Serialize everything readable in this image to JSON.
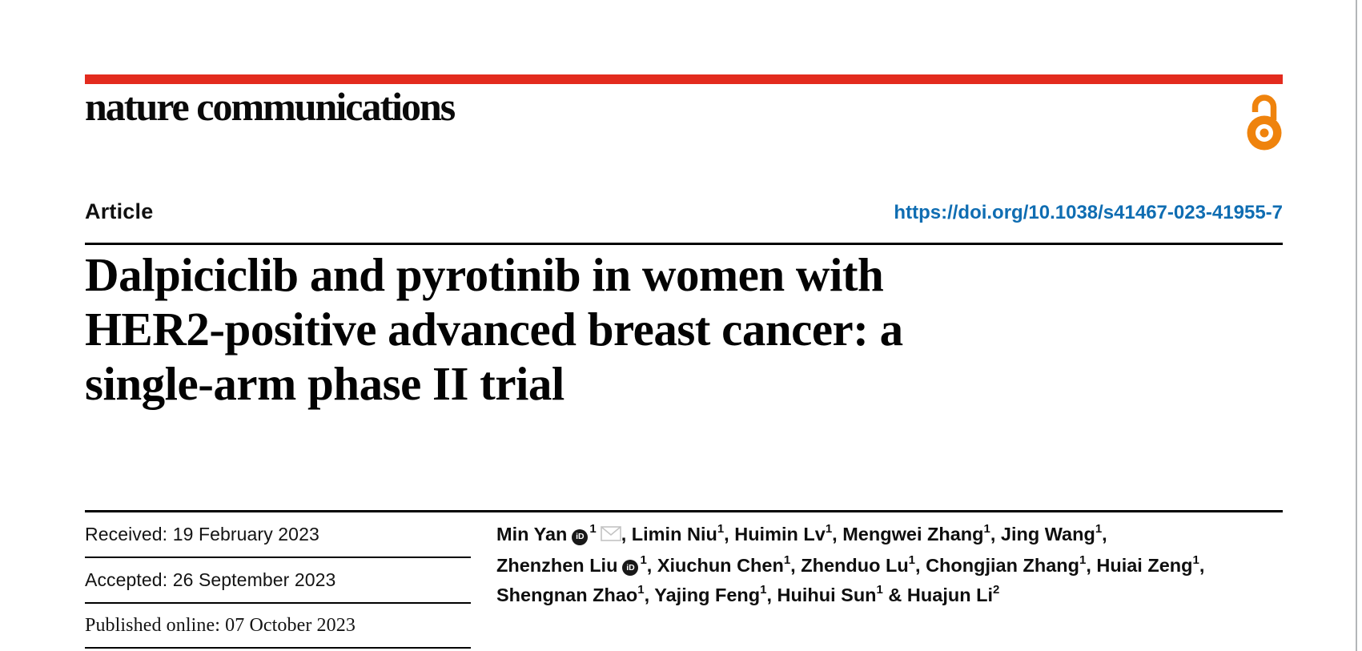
{
  "journal": {
    "name": "nature communications"
  },
  "header": {
    "article_label": "Article",
    "doi": "https://doi.org/10.1038/s41467-023-41955-7"
  },
  "title": {
    "lines": [
      "Dalpiciclib and pyrotinib in women with",
      "HER2-positive advanced breast cancer: a",
      "single-arm phase II trial"
    ]
  },
  "dates": {
    "rows": [
      {
        "label": "Received:",
        "value": "19 February 2023"
      },
      {
        "label": "Accepted:",
        "value": "26 September 2023"
      },
      {
        "label": "Published online:",
        "value": "07 October 2023"
      }
    ]
  },
  "authors": {
    "lines": [
      [
        {
          "text": "Min Yan",
          "orcid": true,
          "sup": "1",
          "mail": true,
          "sep": ", "
        },
        {
          "text": "Limin Niu",
          "sup": "1",
          "sep": ", "
        },
        {
          "text": "Huimin Lv",
          "sup": "1",
          "sep": ", "
        },
        {
          "text": "Mengwei Zhang",
          "sup": "1",
          "sep": ", "
        },
        {
          "text": "Jing Wang",
          "sup": "1",
          "sep": ","
        }
      ],
      [
        {
          "text": "Zhenzhen Liu",
          "orcid": true,
          "sup": "1",
          "sep": ", "
        },
        {
          "text": "Xiuchun Chen",
          "sup": "1",
          "sep": ", "
        },
        {
          "text": "Zhenduo Lu",
          "sup": "1",
          "sep": ", "
        },
        {
          "text": "Chongjian Zhang",
          "sup": "1",
          "sep": ", "
        },
        {
          "text": "Huiai Zeng",
          "sup": "1",
          "sep": ","
        }
      ],
      [
        {
          "text": "Shengnan Zhao",
          "sup": "1",
          "sep": ", "
        },
        {
          "text": "Yajing Feng",
          "sup": "1",
          "sep": ", "
        },
        {
          "text": "Huihui Sun",
          "sup": "1",
          "sep": " & "
        },
        {
          "text": "Huajun Li",
          "sup": "2",
          "sep": ""
        }
      ]
    ],
    "orcid_icon_label": "iD"
  },
  "icons": {
    "open_access": "open-access-padlock-icon",
    "orcid": "orcid-id-icon",
    "mail": "envelope-icon"
  },
  "colors": {
    "brand_red": "#e32b1e",
    "accent_orange": "#ef830d",
    "link_blue": "#0f6db2",
    "text": "#131313",
    "page_edge_gray": "#b3b6b9",
    "envelope_gray": "#c3c3c3"
  }
}
